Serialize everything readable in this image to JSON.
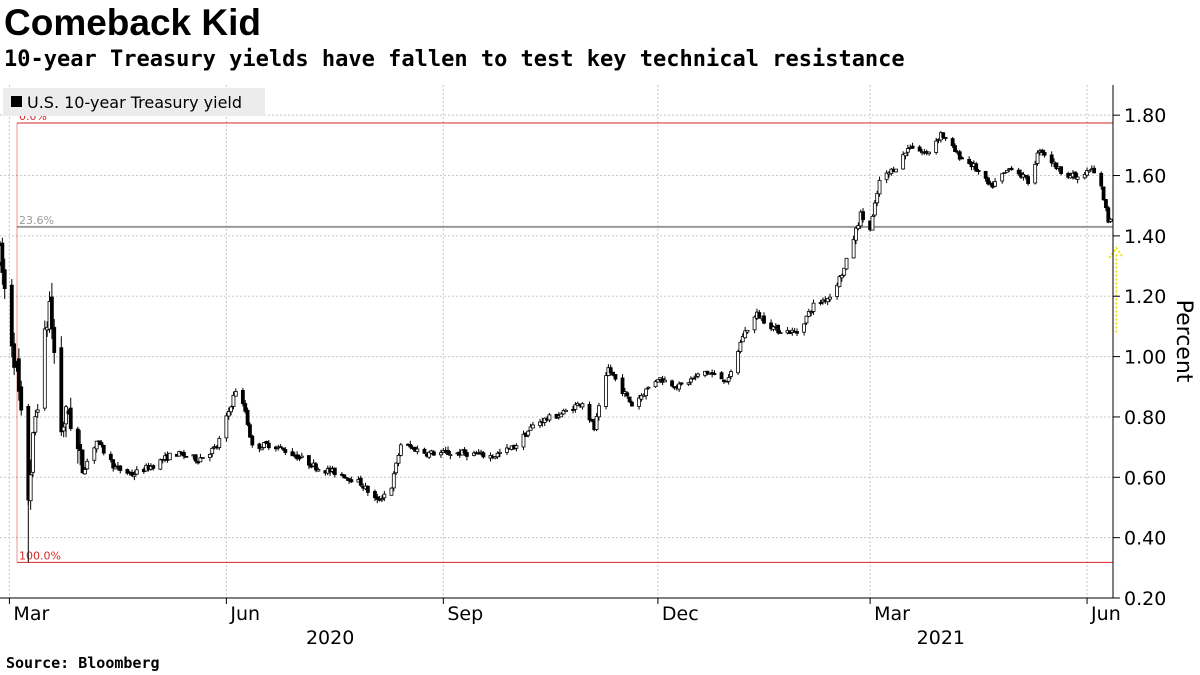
{
  "header": {
    "title": "Comeback Kid",
    "subtitle": "10-year Treasury yields have fallen to test key technical resistance"
  },
  "footer": {
    "source": "Source: Bloomberg"
  },
  "colors": {
    "candle": "#000000",
    "grid": "#c8c8c8",
    "fib_red": "#d62828",
    "fib_gray": "#9a9a9a",
    "arrow": "#f2e600",
    "legend_bg": "#ececec"
  },
  "chart_data": {
    "type": "candlestick",
    "title": "Comeback Kid",
    "subtitle": "10-year Treasury yields have fallen to test key technical resistance",
    "ylabel": "Percent",
    "y_axis_side": "right",
    "ylim": [
      0.2,
      1.9
    ],
    "y_ticks": [
      0.2,
      0.4,
      0.6,
      0.8,
      1.0,
      1.2,
      1.4,
      1.6,
      1.8
    ],
    "y_tick_labels": [
      "0.20",
      "0.40",
      "0.60",
      "0.80",
      "1.00",
      "1.20",
      "1.40",
      "1.60",
      "1.80"
    ],
    "x_range": [
      "2020-02-26",
      "2021-06-12"
    ],
    "x_ticks": [
      {
        "date": "2020-03-01",
        "label": "Mar"
      },
      {
        "date": "2020-06-01",
        "label": "Jun"
      },
      {
        "date": "2020-09-01",
        "label": "Sep"
      },
      {
        "date": "2020-12-01",
        "label": "Dec"
      },
      {
        "date": "2021-03-01",
        "label": "Mar"
      },
      {
        "date": "2021-06-01",
        "label": "Jun"
      }
    ],
    "x_year_labels": [
      {
        "label": "2020",
        "center_date": "2020-07-15"
      },
      {
        "label": "2021",
        "center_date": "2021-03-31"
      }
    ],
    "grid": true,
    "legend": {
      "position": "top-left",
      "entries": [
        "U.S. 10-year Treasury yield"
      ]
    },
    "series": [
      {
        "name": "U.S. 10-year Treasury yield",
        "anchors": [
          [
            "2020-02-26",
            1.33
          ],
          [
            "2020-03-04",
            0.95
          ],
          [
            "2020-03-09",
            0.54
          ],
          [
            "2020-03-12",
            0.8
          ],
          [
            "2020-03-18",
            1.18
          ],
          [
            "2020-03-23",
            0.76
          ],
          [
            "2020-03-26",
            0.82
          ],
          [
            "2020-04-01",
            0.62
          ],
          [
            "2020-04-07",
            0.72
          ],
          [
            "2020-04-15",
            0.63
          ],
          [
            "2020-04-22",
            0.61
          ],
          [
            "2020-05-01",
            0.64
          ],
          [
            "2020-05-10",
            0.68
          ],
          [
            "2020-05-20",
            0.66
          ],
          [
            "2020-05-28",
            0.7
          ],
          [
            "2020-06-05",
            0.89
          ],
          [
            "2020-06-09",
            0.82
          ],
          [
            "2020-06-12",
            0.7
          ],
          [
            "2020-06-20",
            0.71
          ],
          [
            "2020-07-01",
            0.67
          ],
          [
            "2020-07-10",
            0.63
          ],
          [
            "2020-07-20",
            0.61
          ],
          [
            "2020-07-28",
            0.58
          ],
          [
            "2020-08-04",
            0.52
          ],
          [
            "2020-08-10",
            0.57
          ],
          [
            "2020-08-14",
            0.71
          ],
          [
            "2020-08-25",
            0.68
          ],
          [
            "2020-09-01",
            0.68
          ],
          [
            "2020-09-10",
            0.68
          ],
          [
            "2020-09-22",
            0.67
          ],
          [
            "2020-10-01",
            0.7
          ],
          [
            "2020-10-10",
            0.78
          ],
          [
            "2020-10-21",
            0.81
          ],
          [
            "2020-10-30",
            0.85
          ],
          [
            "2020-11-04",
            0.76
          ],
          [
            "2020-11-10",
            0.96
          ],
          [
            "2020-11-20",
            0.84
          ],
          [
            "2020-12-01",
            0.93
          ],
          [
            "2020-12-10",
            0.9
          ],
          [
            "2020-12-21",
            0.95
          ],
          [
            "2020-12-31",
            0.92
          ],
          [
            "2021-01-06",
            1.07
          ],
          [
            "2021-01-12",
            1.14
          ],
          [
            "2021-01-20",
            1.09
          ],
          [
            "2021-01-29",
            1.08
          ],
          [
            "2021-02-05",
            1.17
          ],
          [
            "2021-02-12",
            1.2
          ],
          [
            "2021-02-18",
            1.29
          ],
          [
            "2021-02-25",
            1.47
          ],
          [
            "2021-03-01",
            1.42
          ],
          [
            "2021-03-05",
            1.58
          ],
          [
            "2021-03-12",
            1.63
          ],
          [
            "2021-03-18",
            1.7
          ],
          [
            "2021-03-25",
            1.67
          ],
          [
            "2021-03-31",
            1.74
          ],
          [
            "2021-04-07",
            1.67
          ],
          [
            "2021-04-14",
            1.63
          ],
          [
            "2021-04-21",
            1.56
          ],
          [
            "2021-04-30",
            1.63
          ],
          [
            "2021-05-07",
            1.58
          ],
          [
            "2021-05-12",
            1.69
          ],
          [
            "2021-05-20",
            1.62
          ],
          [
            "2021-05-28",
            1.59
          ],
          [
            "2021-06-03",
            1.62
          ],
          [
            "2021-06-07",
            1.56
          ],
          [
            "2021-06-10",
            1.45
          ],
          [
            "2021-06-11",
            1.46
          ]
        ]
      }
    ],
    "annotations": [
      {
        "type": "hline",
        "label": "0.0%",
        "value": 1.774,
        "color": "red"
      },
      {
        "type": "hline",
        "label": "23.6%",
        "value": 1.43,
        "color": "gray"
      },
      {
        "type": "hline",
        "label": "100.0%",
        "value": 0.318,
        "color": "red"
      },
      {
        "type": "arrow",
        "direction": "up",
        "date": "2021-06-10",
        "from": 1.08,
        "to": 1.36,
        "color": "yellow",
        "style": "dotted"
      }
    ]
  }
}
